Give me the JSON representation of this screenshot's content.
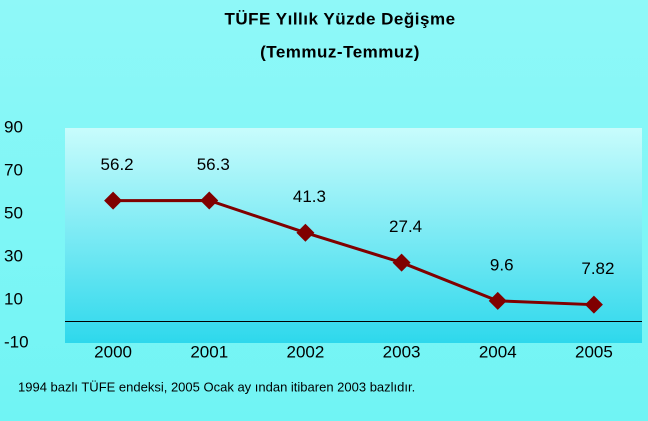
{
  "chart_data": {
    "type": "line",
    "title": "TÜFE Yıllık Yüzde Değişme",
    "subtitle": "(Temmuz-Temmuz)",
    "note": "1994 bazlı TÜFE endeksi, 2005 Ocak ay ından itibaren 2003 bazlıdır.",
    "categories": [
      "2000",
      "2001",
      "2002",
      "2003",
      "2004",
      "2005"
    ],
    "series": [
      {
        "name": "TÜFE",
        "color": "#800000",
        "values": [
          56.2,
          56.3,
          41.3,
          27.4,
          9.6,
          7.82
        ]
      }
    ],
    "ylim": [
      -10,
      90
    ],
    "yticks": [
      -10,
      10,
      30,
      50,
      70,
      90
    ]
  }
}
